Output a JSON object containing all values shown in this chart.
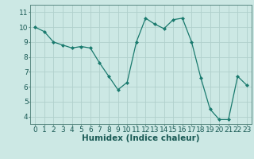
{
  "x": [
    0,
    1,
    2,
    3,
    4,
    5,
    6,
    7,
    8,
    9,
    10,
    11,
    12,
    13,
    14,
    15,
    16,
    17,
    18,
    19,
    20,
    21,
    22,
    23
  ],
  "y": [
    10.0,
    9.7,
    9.0,
    8.8,
    8.6,
    8.7,
    8.6,
    7.6,
    6.7,
    5.8,
    6.3,
    9.0,
    10.6,
    10.2,
    9.9,
    10.5,
    10.6,
    9.0,
    6.6,
    4.5,
    3.8,
    3.8,
    6.7,
    6.1
  ],
  "xlabel": "Humidex (Indice chaleur)",
  "xlim": [
    -0.5,
    23.5
  ],
  "ylim": [
    3.5,
    11.5
  ],
  "yticks": [
    4,
    5,
    6,
    7,
    8,
    9,
    10,
    11
  ],
  "xticks": [
    0,
    1,
    2,
    3,
    4,
    5,
    6,
    7,
    8,
    9,
    10,
    11,
    12,
    13,
    14,
    15,
    16,
    17,
    18,
    19,
    20,
    21,
    22,
    23
  ],
  "line_color": "#1a7a6e",
  "marker": "D",
  "marker_size": 2.0,
  "bg_color": "#cce8e4",
  "grid_color": "#b0d0cc",
  "axes_color": "#5a8a82",
  "tick_color": "#1a5a55",
  "label_fontsize": 7.5,
  "tick_fontsize": 6.5
}
